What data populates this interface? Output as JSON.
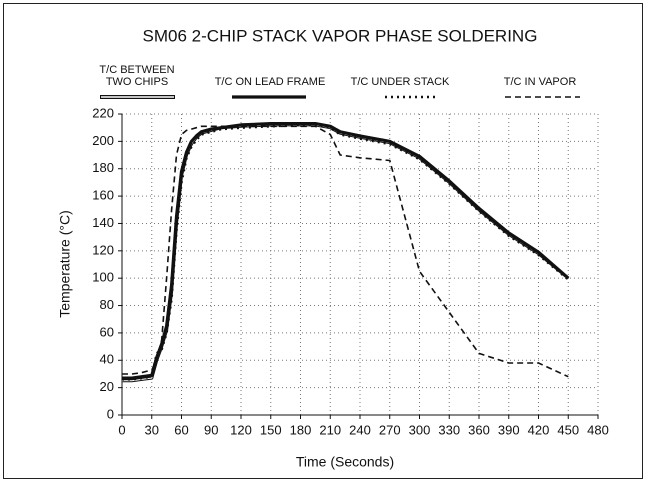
{
  "chart_data": {
    "type": "line",
    "title": "SM06 2-CHIP STACK VAPOR PHASE SOLDERING",
    "x_label": "Time (Seconds)",
    "y_label": "Temperature (°C)",
    "x": [
      0,
      10,
      20,
      30,
      35,
      40,
      45,
      50,
      55,
      60,
      65,
      70,
      75,
      80,
      90,
      100,
      120,
      150,
      180,
      195,
      210,
      220,
      240,
      270,
      300,
      330,
      360,
      390,
      420,
      450
    ],
    "series": [
      {
        "name": "T/C BETWEEN\nTWO CHIPS",
        "color": "#111111",
        "line_style": "double",
        "values": [
          25,
          25,
          26,
          27,
          40,
          50,
          62,
          90,
          140,
          175,
          190,
          198,
          203,
          206,
          208,
          210,
          211,
          212,
          212,
          212,
          210,
          206,
          203,
          199,
          188,
          170,
          150,
          132,
          118,
          100
        ]
      },
      {
        "name": "T/C ON LEAD FRAME",
        "color": "#111111",
        "line_style": "solid",
        "values": [
          27,
          27,
          28,
          29,
          42,
          52,
          65,
          95,
          145,
          178,
          192,
          200,
          204,
          207,
          209,
          210,
          212,
          213,
          213,
          213,
          211,
          207,
          204,
          200,
          189,
          171,
          151,
          133,
          119,
          100
        ]
      },
      {
        "name": "T/C UNDER STACK",
        "color": "#111111",
        "line_style": "dotted",
        "values": [
          26,
          26,
          27,
          28,
          45,
          48,
          60,
          85,
          135,
          170,
          188,
          196,
          201,
          205,
          207,
          209,
          210,
          211,
          212,
          212,
          210,
          205,
          202,
          198,
          187,
          169,
          149,
          131,
          117,
          99
        ]
      },
      {
        "name": "T/C IN VAPOR",
        "color": "#111111",
        "line_style": "dashed",
        "values": [
          30,
          30,
          31,
          33,
          40,
          55,
          100,
          150,
          190,
          205,
          208,
          209,
          210,
          211,
          211,
          211,
          211,
          211,
          211,
          211,
          205,
          190,
          188,
          186,
          105,
          75,
          45,
          38,
          38,
          28
        ]
      }
    ],
    "xlim": [
      0,
      480
    ],
    "xticks": [
      0,
      30,
      60,
      90,
      120,
      150,
      180,
      210,
      240,
      270,
      300,
      330,
      360,
      390,
      420,
      450,
      480
    ],
    "ylim": [
      0,
      220
    ],
    "yticks": [
      0,
      20,
      40,
      60,
      80,
      100,
      120,
      140,
      160,
      180,
      200,
      220
    ],
    "grid": true
  }
}
